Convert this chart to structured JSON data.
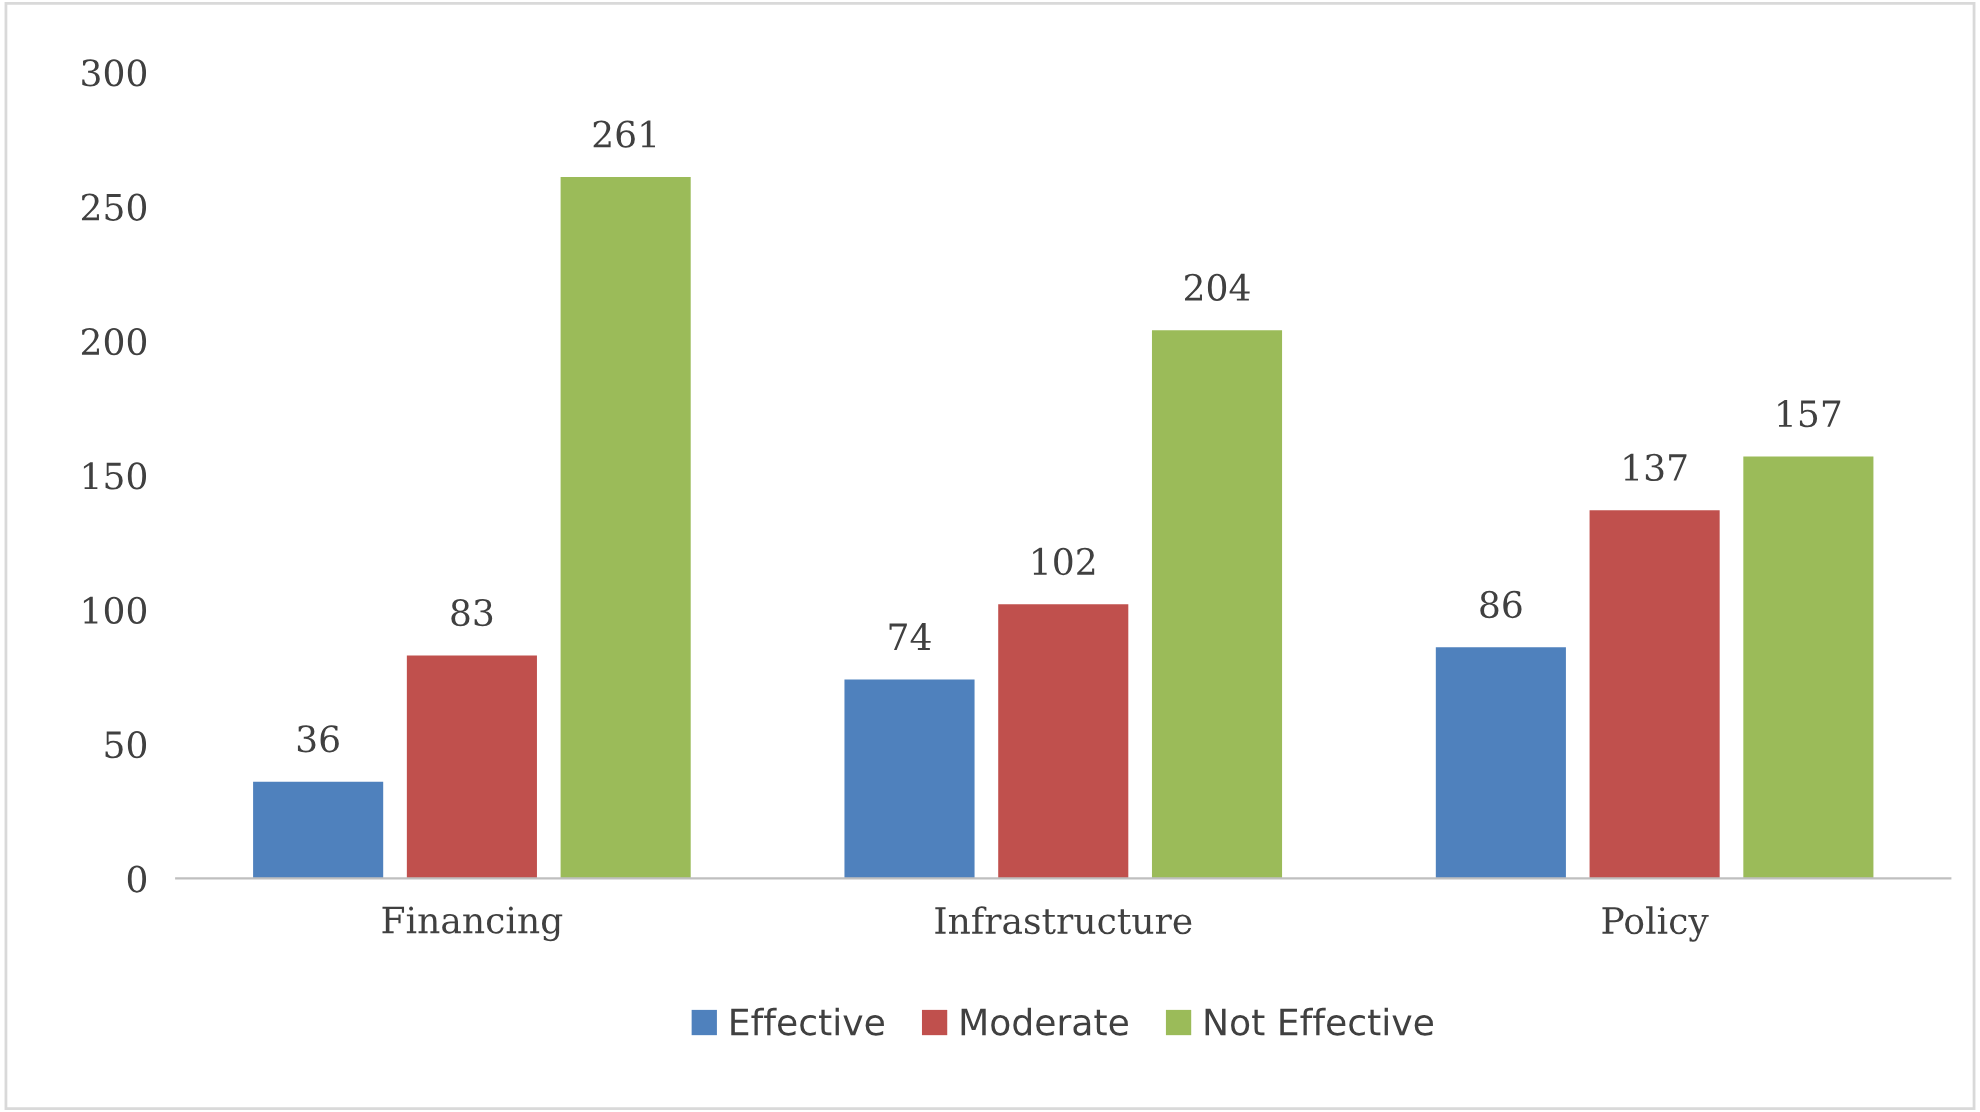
{
  "chart_data": {
    "type": "bar",
    "categories": [
      "Financing",
      "Infrastructure",
      "Policy"
    ],
    "series": [
      {
        "name": "Effective",
        "color": "#4f81bd",
        "values": [
          36,
          74,
          86
        ]
      },
      {
        "name": "Moderate",
        "color": "#c0504d",
        "values": [
          83,
          102,
          137
        ]
      },
      {
        "name": "Not Effective",
        "color": "#9bbb59",
        "values": [
          261,
          204,
          157
        ]
      }
    ],
    "ylim": [
      0,
      300
    ],
    "yticks": [
      0,
      50,
      100,
      150,
      200,
      250,
      300
    ],
    "data_labels": true,
    "grid": false,
    "legend": "bottom"
  }
}
